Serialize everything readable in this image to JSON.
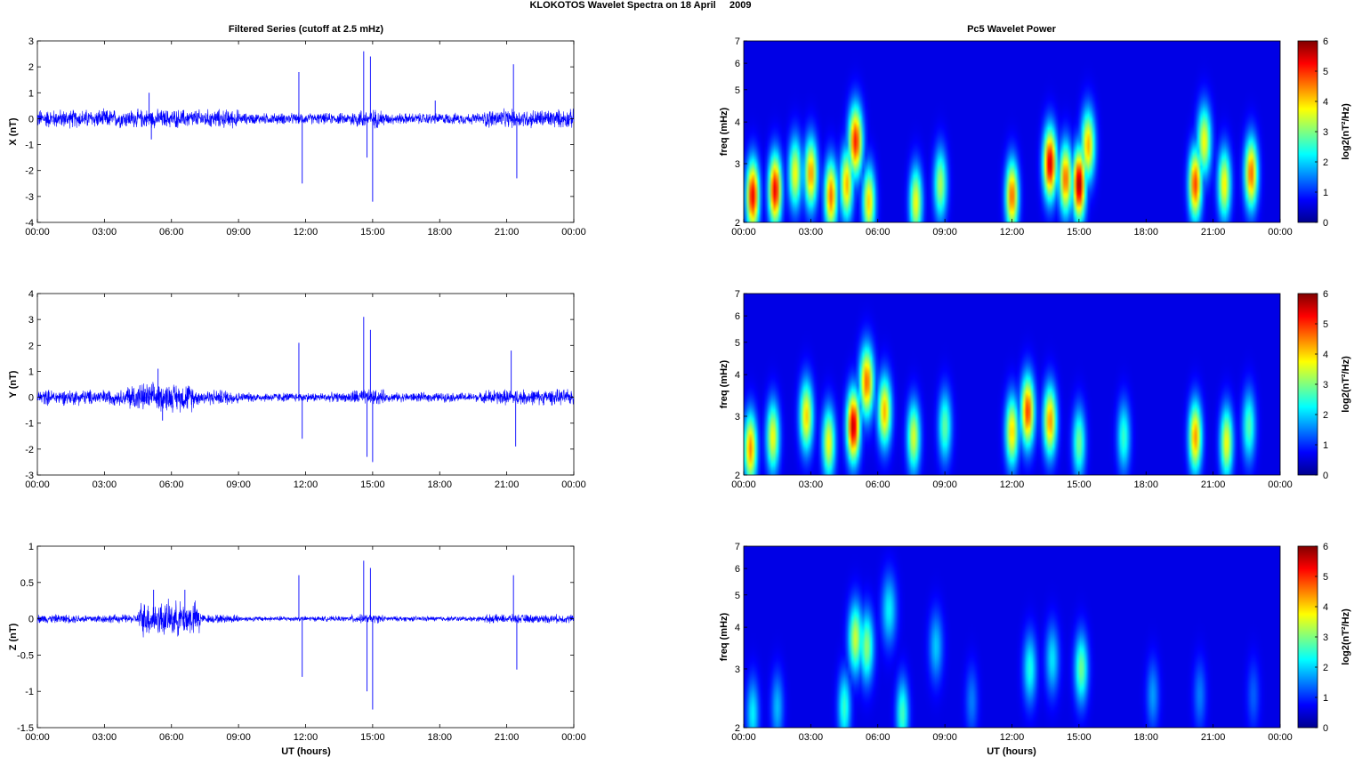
{
  "figure": {
    "title": "KLOKOTOS Wavelet Spectra on 18 April     2009",
    "left_title": "Filtered Series (cutoff at 2.5 mHz)",
    "right_title": "Pc5 Wavelet Power",
    "xlabel": "UT (hours)"
  },
  "chart_data": [
    {
      "type": "line",
      "ylabel": "X (nT)",
      "ylim": [
        -4,
        3
      ],
      "yticks": [
        "3",
        "2",
        "1",
        "0",
        "-1",
        "-2",
        "-3",
        "-4"
      ],
      "xticks": [
        "00:00",
        "03:00",
        "06:00",
        "09:00",
        "12:00",
        "15:00",
        "18:00",
        "21:00",
        "00:00"
      ],
      "xlim_hours": [
        0,
        24
      ],
      "color": "#0000ff",
      "baseline_amplitude": 0.3,
      "spikes": [
        {
          "x": 5.0,
          "y": 1.0
        },
        {
          "x": 5.1,
          "y": -0.8
        },
        {
          "x": 11.7,
          "y": 1.8
        },
        {
          "x": 11.85,
          "y": -2.5
        },
        {
          "x": 14.6,
          "y": 2.6
        },
        {
          "x": 14.75,
          "y": -1.5
        },
        {
          "x": 14.9,
          "y": 2.4
        },
        {
          "x": 15.0,
          "y": -3.2
        },
        {
          "x": 17.8,
          "y": 0.7
        },
        {
          "x": 21.3,
          "y": 2.1
        },
        {
          "x": 21.45,
          "y": -2.3
        }
      ]
    },
    {
      "type": "line",
      "ylabel": "Y (nT)",
      "ylim": [
        -3,
        4
      ],
      "yticks": [
        "4",
        "3",
        "2",
        "1",
        "0",
        "-1",
        "-2",
        "-3"
      ],
      "xticks": [
        "00:00",
        "03:00",
        "06:00",
        "09:00",
        "12:00",
        "15:00",
        "18:00",
        "21:00",
        "00:00"
      ],
      "xlim_hours": [
        0,
        24
      ],
      "color": "#0000ff",
      "baseline_amplitude": 0.25,
      "spikes": [
        {
          "x": 5.4,
          "y": 1.1
        },
        {
          "x": 5.6,
          "y": -0.9
        },
        {
          "x": 11.7,
          "y": 2.1
        },
        {
          "x": 11.85,
          "y": -1.6
        },
        {
          "x": 14.6,
          "y": 3.1
        },
        {
          "x": 14.75,
          "y": -2.3
        },
        {
          "x": 14.9,
          "y": 2.6
        },
        {
          "x": 15.0,
          "y": -2.5
        },
        {
          "x": 21.2,
          "y": 1.8
        },
        {
          "x": 21.4,
          "y": -1.9
        }
      ]
    },
    {
      "type": "line",
      "ylabel": "Z (nT)",
      "ylim": [
        -1.5,
        1
      ],
      "yticks": [
        "1",
        "0.5",
        "0",
        "-0.5",
        "-1",
        "-1.5"
      ],
      "xticks": [
        "00:00",
        "03:00",
        "06:00",
        "09:00",
        "12:00",
        "15:00",
        "18:00",
        "21:00",
        "00:00"
      ],
      "xlim_hours": [
        0,
        24
      ],
      "color": "#0000ff",
      "baseline_amplitude": 0.05,
      "spikes": [
        {
          "x": 5.2,
          "y": 0.4
        },
        {
          "x": 6.6,
          "y": 0.4
        },
        {
          "x": 11.7,
          "y": 0.6
        },
        {
          "x": 11.85,
          "y": -0.8
        },
        {
          "x": 14.6,
          "y": 0.8
        },
        {
          "x": 14.75,
          "y": -1.0
        },
        {
          "x": 14.9,
          "y": 0.7
        },
        {
          "x": 15.0,
          "y": -1.25
        },
        {
          "x": 21.3,
          "y": 0.6
        },
        {
          "x": 21.45,
          "y": -0.7
        }
      ]
    },
    {
      "type": "heatmap",
      "ylabel": "freq (mHz)",
      "colorbar_label": "log2(nT²/Hz)",
      "yscale": "log",
      "ylim": [
        2,
        7
      ],
      "yticks": [
        "7",
        "6",
        "5",
        "4",
        "3",
        "2"
      ],
      "clim": [
        0,
        6
      ],
      "cticks": [
        "6",
        "5",
        "4",
        "3",
        "2",
        "1",
        "0"
      ],
      "xticks": [
        "00:00",
        "03:00",
        "06:00",
        "09:00",
        "12:00",
        "15:00",
        "18:00",
        "21:00",
        "00:00"
      ],
      "blobs": [
        {
          "t": 0.4,
          "f": 2.4,
          "p": 5.3
        },
        {
          "t": 1.4,
          "f": 2.5,
          "p": 5.3
        },
        {
          "t": 2.3,
          "f": 2.8,
          "p": 3.5
        },
        {
          "t": 3.0,
          "f": 2.8,
          "p": 4.2
        },
        {
          "t": 3.9,
          "f": 2.4,
          "p": 4.5
        },
        {
          "t": 4.6,
          "f": 2.6,
          "p": 4.0
        },
        {
          "t": 5.0,
          "f": 3.5,
          "p": 5.0
        },
        {
          "t": 5.6,
          "f": 2.3,
          "p": 3.8
        },
        {
          "t": 7.7,
          "f": 2.3,
          "p": 3.5
        },
        {
          "t": 8.8,
          "f": 2.6,
          "p": 3.0
        },
        {
          "t": 12.0,
          "f": 2.4,
          "p": 4.5
        },
        {
          "t": 13.7,
          "f": 3.0,
          "p": 5.5
        },
        {
          "t": 14.4,
          "f": 2.7,
          "p": 4.5
        },
        {
          "t": 15.0,
          "f": 2.6,
          "p": 5.8
        },
        {
          "t": 15.4,
          "f": 3.4,
          "p": 4.0
        },
        {
          "t": 20.2,
          "f": 2.6,
          "p": 4.8
        },
        {
          "t": 20.6,
          "f": 3.5,
          "p": 3.5
        },
        {
          "t": 21.5,
          "f": 2.6,
          "p": 3.6
        },
        {
          "t": 22.7,
          "f": 2.8,
          "p": 4.5
        }
      ]
    },
    {
      "type": "heatmap",
      "ylabel": "freq (mHz)",
      "colorbar_label": "log2(nT²/Hz)",
      "yscale": "log",
      "ylim": [
        2,
        7
      ],
      "yticks": [
        "7",
        "6",
        "5",
        "4",
        "3",
        "2"
      ],
      "clim": [
        0,
        6
      ],
      "cticks": [
        "6",
        "5",
        "4",
        "3",
        "2",
        "1",
        "0"
      ],
      "xticks": [
        "00:00",
        "03:00",
        "06:00",
        "09:00",
        "12:00",
        "15:00",
        "18:00",
        "21:00",
        "00:00"
      ],
      "blobs": [
        {
          "t": 0.3,
          "f": 2.4,
          "p": 4.3
        },
        {
          "t": 1.3,
          "f": 2.6,
          "p": 3.5
        },
        {
          "t": 2.8,
          "f": 3.0,
          "p": 3.8
        },
        {
          "t": 3.8,
          "f": 2.5,
          "p": 3.5
        },
        {
          "t": 4.9,
          "f": 2.8,
          "p": 5.6
        },
        {
          "t": 5.5,
          "f": 3.8,
          "p": 4.5
        },
        {
          "t": 6.3,
          "f": 3.1,
          "p": 4.0
        },
        {
          "t": 7.6,
          "f": 2.6,
          "p": 3.3
        },
        {
          "t": 9.0,
          "f": 2.8,
          "p": 2.5
        },
        {
          "t": 12.0,
          "f": 2.7,
          "p": 3.8
        },
        {
          "t": 12.7,
          "f": 3.1,
          "p": 4.8
        },
        {
          "t": 13.7,
          "f": 2.9,
          "p": 4.2
        },
        {
          "t": 15.0,
          "f": 2.5,
          "p": 2.6
        },
        {
          "t": 17.0,
          "f": 2.6,
          "p": 2.2
        },
        {
          "t": 20.2,
          "f": 2.6,
          "p": 4.2
        },
        {
          "t": 21.6,
          "f": 2.5,
          "p": 3.5
        },
        {
          "t": 22.6,
          "f": 2.8,
          "p": 2.4
        }
      ]
    },
    {
      "type": "heatmap",
      "ylabel": "freq (mHz)",
      "colorbar_label": "log2(nT²/Hz)",
      "yscale": "log",
      "ylim": [
        2,
        7
      ],
      "yticks": [
        "7",
        "6",
        "5",
        "4",
        "3",
        "2"
      ],
      "clim": [
        0,
        6
      ],
      "cticks": [
        "6",
        "5",
        "4",
        "3",
        "2",
        "1",
        "0"
      ],
      "xticks": [
        "00:00",
        "03:00",
        "06:00",
        "09:00",
        "12:00",
        "15:00",
        "18:00",
        "21:00",
        "00:00"
      ],
      "blobs": [
        {
          "t": 0.4,
          "f": 2.2,
          "p": 1.8
        },
        {
          "t": 1.5,
          "f": 2.3,
          "p": 1.4
        },
        {
          "t": 4.5,
          "f": 2.3,
          "p": 2.2
        },
        {
          "t": 5.0,
          "f": 3.7,
          "p": 3.2
        },
        {
          "t": 5.5,
          "f": 3.5,
          "p": 2.8
        },
        {
          "t": 6.5,
          "f": 4.5,
          "p": 1.8
        },
        {
          "t": 7.1,
          "f": 2.2,
          "p": 2.3
        },
        {
          "t": 8.6,
          "f": 3.5,
          "p": 1.5
        },
        {
          "t": 10.2,
          "f": 2.4,
          "p": 1.0
        },
        {
          "t": 12.8,
          "f": 3.0,
          "p": 2.0
        },
        {
          "t": 13.8,
          "f": 3.2,
          "p": 1.7
        },
        {
          "t": 15.1,
          "f": 3.0,
          "p": 2.6
        },
        {
          "t": 18.3,
          "f": 2.5,
          "p": 1.2
        },
        {
          "t": 20.4,
          "f": 2.5,
          "p": 1.0
        },
        {
          "t": 22.8,
          "f": 2.5,
          "p": 0.8
        }
      ]
    }
  ]
}
